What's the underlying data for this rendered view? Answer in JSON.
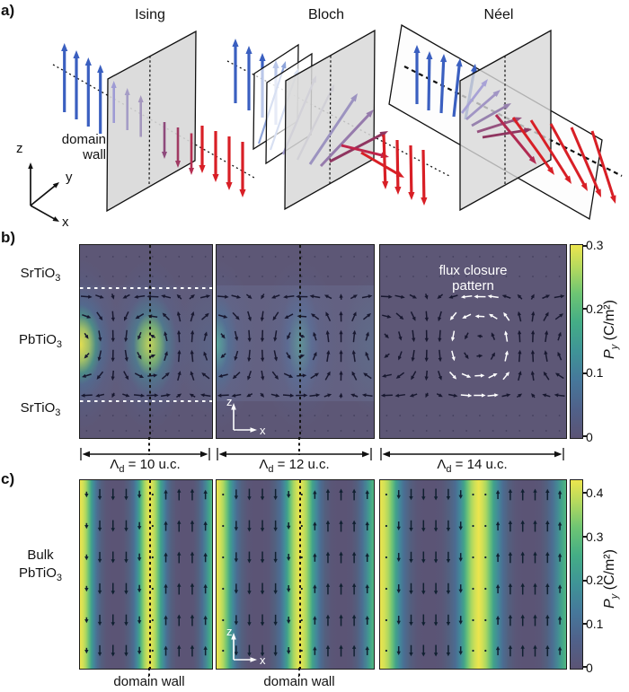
{
  "palette": {
    "page_bg": "#ffffff",
    "heat_bg": "#5d5776",
    "arrow_blue": "#3a5fc0",
    "arrow_red": "#d81f26",
    "plane_gray": "#d8d8d8",
    "quiver_dark": "#181830",
    "quiver_c_dark": "#102031",
    "cmap_bottom": "#5b5475",
    "cmap_top": "#ece54e"
  },
  "panel_a": {
    "label": "a)",
    "titles": [
      "Ising",
      "Bloch",
      "Néel"
    ],
    "domain_wall_label": [
      "domain",
      "wall"
    ],
    "axes": {
      "z": "z",
      "y": "y",
      "x": "x"
    }
  },
  "panel_b": {
    "label": "b)",
    "layers": [
      {
        "text": "SrTiO",
        "sub": "3"
      },
      {
        "text": "PbTiO",
        "sub": "3"
      },
      {
        "text": "SrTiO",
        "sub": "3"
      }
    ],
    "flux_annotation": [
      "flux closure",
      "pattern"
    ],
    "inset_axes": {
      "z": "z",
      "x": "x"
    },
    "colorbar": {
      "ticks": [
        "0.3",
        "0.2",
        "0.1",
        "0"
      ],
      "label": {
        "symbol": "P",
        "sub": "y",
        "units": " (C/m²)"
      }
    }
  },
  "period_row": {
    "labels": [
      {
        "symbol": "Λ",
        "sub": "d",
        "rest": " = 10 u.c."
      },
      {
        "symbol": "Λ",
        "sub": "d",
        "rest": " = 12 u.c."
      },
      {
        "symbol": "Λ",
        "sub": "d",
        "rest": " = 14 u.c."
      }
    ]
  },
  "panel_c": {
    "label": "c)",
    "side_label": [
      {
        "text": "Bulk",
        "sub": ""
      },
      {
        "text": "PbTiO",
        "sub": "3"
      }
    ],
    "inset_axes": {
      "z": "z",
      "x": "x"
    },
    "colorbar": {
      "ticks": [
        "0.4",
        "0.3",
        "0.2",
        "0.1",
        "0"
      ],
      "label": {
        "symbol": "P",
        "sub": "y",
        "units": " (C/m²)"
      }
    },
    "bottom_labels": [
      "domain wall",
      "domain wall"
    ]
  },
  "chart_data": [
    {
      "type": "heatmap",
      "panel": "b",
      "title": "Py map of SrTiO3/PbTiO3/SrTiO3 superlattice cross-section with polarization quiver overlay",
      "layers_top_to_bottom": [
        "SrTiO3",
        "PbTiO3",
        "SrTiO3"
      ],
      "colorbar": {
        "label": "Py (C/m²)",
        "min": 0,
        "max": 0.3,
        "ticks": [
          0,
          0.1,
          0.2,
          0.3
        ]
      },
      "subpanels": [
        {
          "period": "Λd = 10 u.c.",
          "domain_wall_fracs": [
            0.0,
            0.53
          ],
          "py_peak_at_walls": 0.3,
          "has_dashed_wall_line": true
        },
        {
          "period": "Λd = 12 u.c.",
          "domain_wall_fracs": [
            0.0,
            0.53
          ],
          "py_peak_at_walls": 0.15,
          "has_dashed_wall_line": true
        },
        {
          "period": "Λd = 14 u.c.",
          "domain_wall_fracs": [
            0.0,
            0.53
          ],
          "py_peak_at_walls": 0.02,
          "has_dashed_wall_line": false,
          "annotation": "flux closure pattern"
        }
      ]
    },
    {
      "type": "heatmap",
      "panel": "c",
      "title": "Py map of bulk PbTiO3 180° stripe domains, Bloch component peaks at domain walls",
      "colorbar": {
        "label": "Py (C/m²)",
        "min": 0,
        "max": 0.43,
        "ticks": [
          0,
          0.1,
          0.2,
          0.3,
          0.4
        ]
      },
      "subpanels": [
        {
          "period": "Λd = 10 u.c.",
          "domain_wall_fracs": [
            0.0,
            0.53
          ],
          "py_peak_at_walls": 0.43
        },
        {
          "period": "Λd = 12 u.c.",
          "domain_wall_fracs": [
            0.0,
            0.53
          ],
          "py_peak_at_walls": 0.43
        },
        {
          "period": "Λd = 14 u.c.",
          "domain_wall_fracs": [
            0.0,
            0.53
          ],
          "py_peak_at_walls": 0.43
        }
      ]
    }
  ]
}
